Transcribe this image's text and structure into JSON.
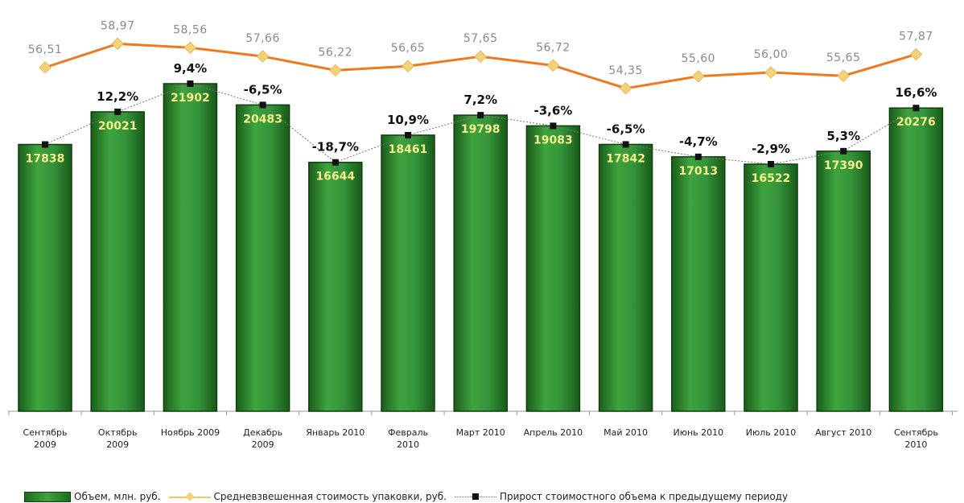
{
  "chart_data": {
    "type": "bar",
    "title": "",
    "categories": [
      [
        "Сентябрь",
        "2009"
      ],
      [
        "Октябрь",
        "2009"
      ],
      [
        "Ноябрь 2009"
      ],
      [
        "Декабрь",
        "2009"
      ],
      [
        "Январь 2010"
      ],
      [
        "Февраль",
        "2010"
      ],
      [
        "Март 2010"
      ],
      [
        "Апрель 2010"
      ],
      [
        "Май 2010"
      ],
      [
        "Июнь 2010"
      ],
      [
        "Июль 2010"
      ],
      [
        "Август 2010"
      ],
      [
        "Сентябрь",
        "2010"
      ]
    ],
    "series": [
      {
        "name": "Объем, млн. руб.",
        "type": "bar",
        "color": "#2e8b2e",
        "values": [
          17838,
          20021,
          21902,
          20483,
          16644,
          18461,
          19798,
          19083,
          17842,
          17013,
          16522,
          17390,
          20276
        ],
        "labels": [
          "17838",
          "20021",
          "21902",
          "20483",
          "16644",
          "18461",
          "19798",
          "19083",
          "17842",
          "17013",
          "16522",
          "17390",
          "20276"
        ]
      },
      {
        "name": "Средневзвешенная стоимость упаковки, руб.",
        "type": "line",
        "color": "#f07820",
        "marker_color": "#f3d27a",
        "values": [
          56.51,
          58.97,
          58.56,
          57.66,
          56.22,
          56.65,
          57.65,
          56.72,
          54.35,
          55.6,
          56.0,
          55.65,
          57.87
        ],
        "labels": [
          "56,51",
          "58,97",
          "58,56",
          "57,66",
          "56,22",
          "56,65",
          "57,65",
          "56,72",
          "54,35",
          "55,60",
          "56,00",
          "55,65",
          "57,87"
        ]
      },
      {
        "name": "Прирост стоимостного объема к предыдущему периоду",
        "type": "line",
        "style": "dotted",
        "color": "#777777",
        "marker_color": "#111111",
        "values": [
          null,
          12.2,
          9.4,
          -6.5,
          -18.7,
          10.9,
          7.2,
          -3.6,
          -6.5,
          -4.7,
          -2.9,
          5.3,
          16.6
        ],
        "labels": [
          "",
          "12,2%",
          "9,4%",
          "-6,5%",
          "-18,7%",
          "10,9%",
          "7,2%",
          "-3,6%",
          "-6,5%",
          "-4,7%",
          "-2,9%",
          "5,3%",
          "16,6%"
        ]
      }
    ],
    "ylim": [
      0,
      24000
    ],
    "grid": false,
    "legend": "bottom"
  },
  "legend": {
    "volume": "Объем, млн. руб.",
    "price": "Средневзвешенная стоимость упаковки, руб.",
    "growth": "Прирост стоимостного объема к предыдущему периоду"
  }
}
